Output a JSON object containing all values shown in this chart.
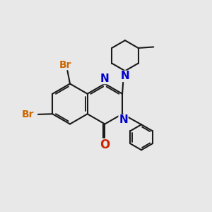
{
  "bg_color": "#e8e8e8",
  "bond_color": "#1a1a1a",
  "n_color": "#0000cc",
  "o_color": "#cc2200",
  "br_color": "#cc6600",
  "lw": 1.5,
  "fs": 10,
  "xlim": [
    0,
    10
  ],
  "ylim": [
    0,
    10
  ]
}
